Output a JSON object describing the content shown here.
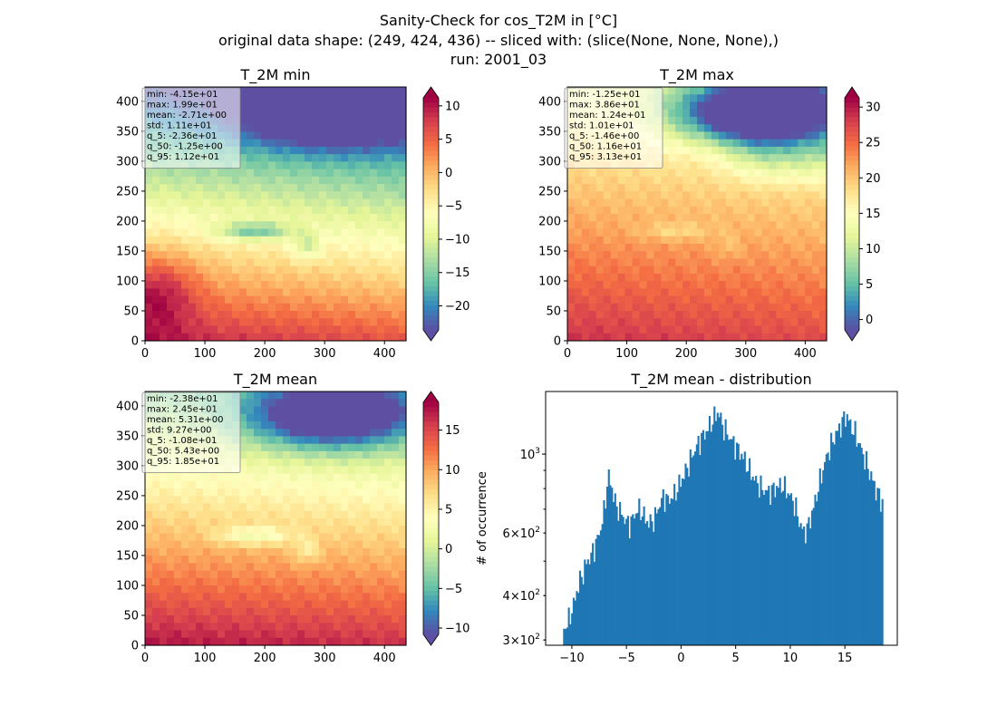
{
  "figure": {
    "suptitle_lines": [
      "Sanity-Check for cos_T2M in [°C]",
      "original data shape: (249, 424, 436) -- sliced with: (slice(None, None, None),)",
      "run: 2001_03"
    ]
  },
  "chart_data": [
    {
      "type": "heatmap",
      "title": "T_2M min",
      "xlim": [
        0,
        436
      ],
      "ylim": [
        0,
        424
      ],
      "xticks": [
        0,
        100,
        200,
        300,
        400
      ],
      "yticks": [
        0,
        50,
        100,
        150,
        200,
        250,
        300,
        350,
        400
      ],
      "colormap": "Spectral_r",
      "colorbar": {
        "vmin": -23.6,
        "vmax": 11.2,
        "ticks": [
          -20,
          -15,
          -10,
          -5,
          0,
          5,
          10
        ],
        "extend": "both"
      },
      "stats_lines": [
        "min: -4.15e+01",
        "max: 1.99e+01",
        "mean: -2.71e+00",
        "std: 1.11e+01",
        "q_5: -2.36e+01",
        "q_50: -1.25e+00",
        "q_95: 1.12e+01"
      ],
      "variant": "min"
    },
    {
      "type": "heatmap",
      "title": "T_2M max",
      "xlim": [
        0,
        436
      ],
      "ylim": [
        0,
        424
      ],
      "xticks": [
        0,
        100,
        200,
        300,
        400
      ],
      "yticks": [
        0,
        50,
        100,
        150,
        200,
        250,
        300,
        350,
        400
      ],
      "colormap": "Spectral_r",
      "colorbar": {
        "vmin": -1.46,
        "vmax": 31.3,
        "ticks": [
          0,
          5,
          10,
          15,
          20,
          25,
          30
        ],
        "extend": "both"
      },
      "stats_lines": [
        "min: -1.25e+01",
        "max: 3.86e+01",
        "mean: 1.24e+01",
        "std: 1.01e+01",
        "q_5: -1.46e+00",
        "q_50: 1.16e+01",
        "q_95: 3.13e+01"
      ],
      "variant": "max"
    },
    {
      "type": "heatmap",
      "title": "T_2M mean",
      "xlim": [
        0,
        436
      ],
      "ylim": [
        0,
        424
      ],
      "xticks": [
        0,
        100,
        200,
        300,
        400
      ],
      "yticks": [
        0,
        50,
        100,
        150,
        200,
        250,
        300,
        350,
        400
      ],
      "colormap": "Spectral_r",
      "colorbar": {
        "vmin": -10.8,
        "vmax": 18.5,
        "ticks": [
          -10,
          -5,
          0,
          5,
          10,
          15
        ],
        "extend": "both"
      },
      "stats_lines": [
        "min: -2.38e+01",
        "max: 2.45e+01",
        "mean: 5.31e+00",
        "std: 9.27e+00",
        "q_5: -1.08e+01",
        "q_50: 5.43e+00",
        "q_95: 1.85e+01"
      ],
      "variant": "mean"
    },
    {
      "type": "bar",
      "title": "T_2M mean - distribution",
      "ylabel": "# of occurrence",
      "yscale": "log",
      "xlim": [
        -12.4,
        19.8
      ],
      "ylim": [
        290,
        1500
      ],
      "xticks": [
        -10,
        -5,
        0,
        5,
        10,
        15
      ],
      "xtick_labels": [
        "−10",
        "−5",
        "0",
        "5",
        "10",
        "15"
      ],
      "ytick_labels": [
        {
          "value": 300,
          "mantissa": "3",
          "exp": "2"
        },
        {
          "value": 400,
          "mantissa": "4",
          "exp": "2"
        },
        {
          "value": 600,
          "mantissa": "6",
          "exp": "2"
        },
        {
          "value": 1000,
          "mantissa": "",
          "exp": "3"
        }
      ],
      "bar_color": "#1f77b4",
      "bins": {
        "start": -10.8,
        "width": 0.1465,
        "count": 200
      },
      "profile": [
        [
          -10.8,
          320
        ],
        [
          -10.3,
          340
        ],
        [
          -9.8,
          380
        ],
        [
          -9.4,
          430
        ],
        [
          -9.0,
          460
        ],
        [
          -8.6,
          500
        ],
        [
          -8.2,
          520
        ],
        [
          -7.8,
          560
        ],
        [
          -7.4,
          610
        ],
        [
          -7.0,
          700
        ],
        [
          -6.7,
          870
        ],
        [
          -6.4,
          820
        ],
        [
          -6.0,
          720
        ],
        [
          -5.6,
          690
        ],
        [
          -5.2,
          660
        ],
        [
          -4.8,
          630
        ],
        [
          -4.4,
          660
        ],
        [
          -4.0,
          700
        ],
        [
          -3.6,
          690
        ],
        [
          -3.2,
          650
        ],
        [
          -2.8,
          640
        ],
        [
          -2.4,
          660
        ],
        [
          -2.0,
          720
        ],
        [
          -1.6,
          760
        ],
        [
          -1.2,
          740
        ],
        [
          -0.6,
          770
        ],
        [
          0.0,
          840
        ],
        [
          0.6,
          920
        ],
        [
          1.2,
          1020
        ],
        [
          1.8,
          1100
        ],
        [
          2.4,
          1170
        ],
        [
          3.0,
          1260
        ],
        [
          3.4,
          1320
        ],
        [
          3.8,
          1200
        ],
        [
          4.4,
          1120
        ],
        [
          5.0,
          1050
        ],
        [
          5.6,
          990
        ],
        [
          6.2,
          910
        ],
        [
          6.8,
          840
        ],
        [
          7.4,
          800
        ],
        [
          8.0,
          780
        ],
        [
          8.6,
          800
        ],
        [
          9.2,
          820
        ],
        [
          9.8,
          780
        ],
        [
          10.4,
          720
        ],
        [
          10.8,
          650
        ],
        [
          11.2,
          600
        ],
        [
          11.6,
          620
        ],
        [
          12.2,
          720
        ],
        [
          12.8,
          860
        ],
        [
          13.4,
          1000
        ],
        [
          14.0,
          1110
        ],
        [
          14.6,
          1200
        ],
        [
          15.1,
          1290
        ],
        [
          15.5,
          1210
        ],
        [
          16.0,
          1130
        ],
        [
          16.6,
          1010
        ],
        [
          17.2,
          900
        ],
        [
          17.8,
          800
        ],
        [
          18.4,
          730
        ]
      ]
    }
  ]
}
